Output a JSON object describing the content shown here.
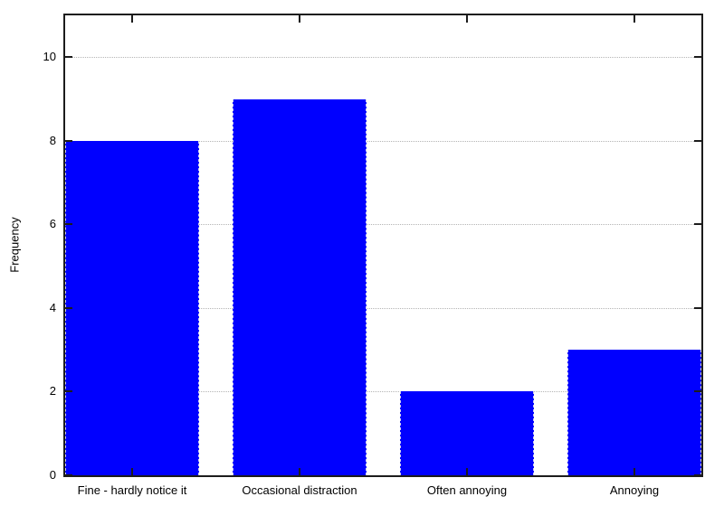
{
  "chart_data": {
    "type": "bar",
    "categories": [
      "Fine - hardly notice it",
      "Occasional distraction",
      "Often annoying",
      "Annoying"
    ],
    "values": [
      8,
      9,
      2,
      3
    ],
    "title": "",
    "xlabel": "",
    "ylabel": "Frequency",
    "yticks": [
      0,
      2,
      4,
      6,
      8,
      10
    ],
    "ylim": [
      0,
      11
    ],
    "xlim": [
      -0.4,
      3.4
    ],
    "bar_width": 0.8,
    "bar_color": "#0000ff",
    "bar_edge_color": "#ccccee",
    "axis_color": "#1c1c1c",
    "grid_color": "#b4b4b4",
    "background_color": "#ffffff",
    "grid": true,
    "legend_position": "none"
  }
}
